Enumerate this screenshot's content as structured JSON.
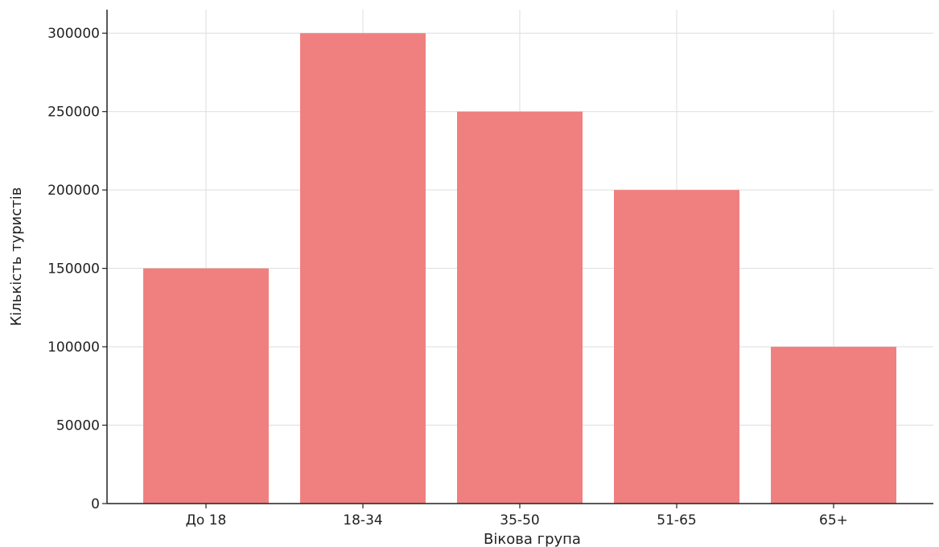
{
  "chart_data": {
    "type": "bar",
    "title": "",
    "xlabel": "Вікова група",
    "ylabel": "Кількість туристів",
    "categories": [
      "До 18",
      "18-34",
      "35-50",
      "51-65",
      "65+"
    ],
    "values": [
      150000,
      300000,
      250000,
      200000,
      100000
    ],
    "ylim": [
      0,
      315000
    ],
    "yticks": [
      0,
      50000,
      100000,
      150000,
      200000,
      250000,
      300000
    ],
    "grid": true,
    "bar_color": "#f08080",
    "grid_color": "#dddddd",
    "axis_color": "#222222"
  }
}
